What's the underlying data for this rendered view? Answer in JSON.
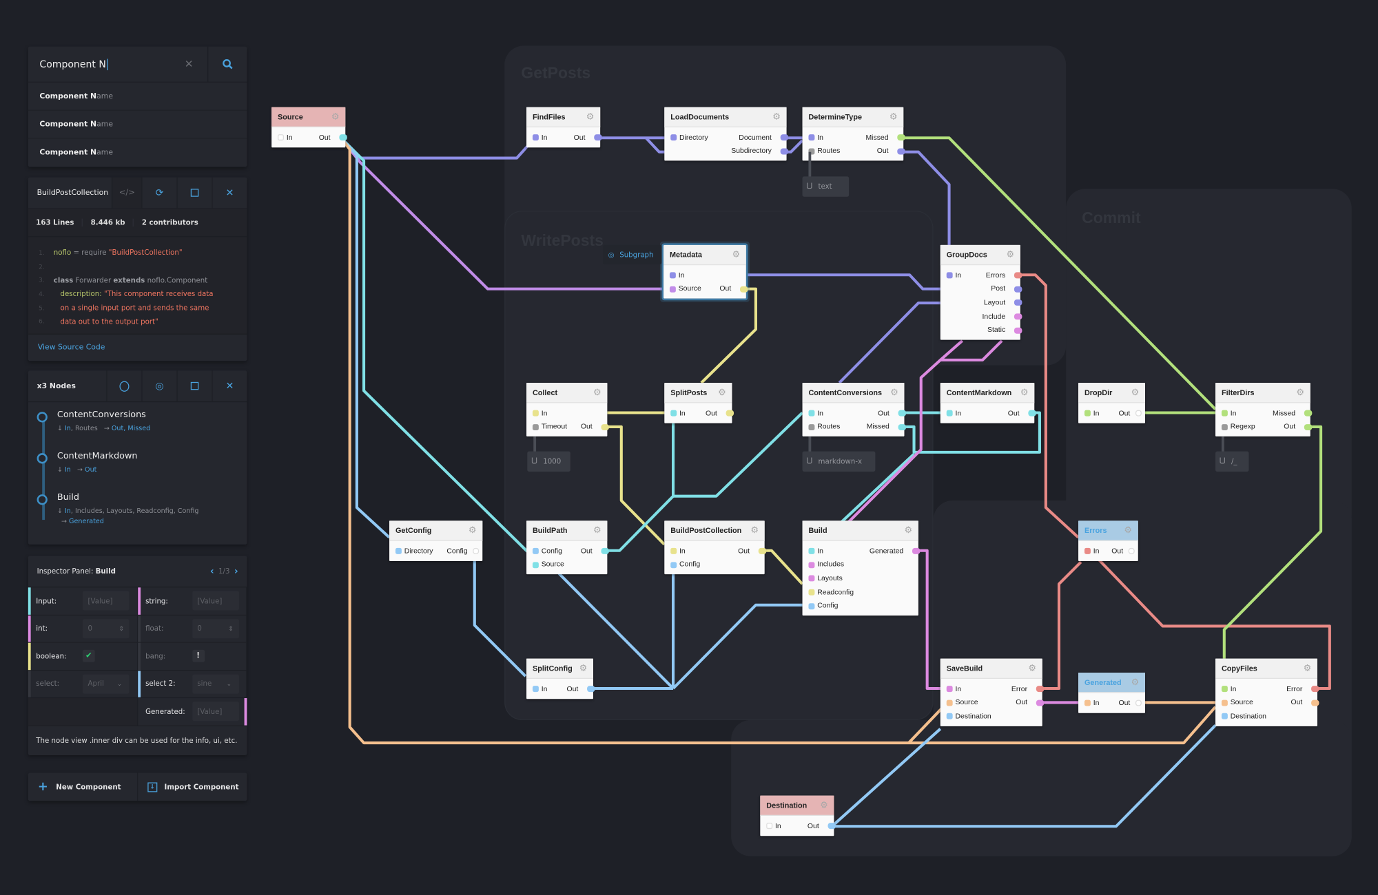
{
  "colors": {
    "lavender": "#8e8ee6",
    "violet": "#c18ce8",
    "cyan": "#80e0e6",
    "blue": "#92c9f5",
    "orange": "#f5c08e",
    "yellow": "#e8e28c",
    "green": "#b2e07c",
    "salmon": "#e98a86",
    "magenta": "#dc8ae0",
    "grey": "#9a9a9a",
    "accent": "#4aa3df"
  },
  "search": {
    "value": "Component N",
    "results": [
      {
        "match": "Component N",
        "rest": "ame"
      },
      {
        "match": "Component N",
        "rest": "ame"
      },
      {
        "match": "Component N",
        "rest": "ame"
      }
    ]
  },
  "code_panel": {
    "title": "BuildPostCollection",
    "code_toggle": "</>",
    "stats": [
      "163 Lines",
      "8.446 kb",
      "2 contributors"
    ],
    "lines": [
      {
        "n": "1.",
        "tokens": [
          {
            "t": "noflo",
            "c": "green"
          },
          {
            "t": " = require ",
            "c": "grey"
          },
          {
            "t": "\"BuildPostCollection\"",
            "c": "red"
          }
        ]
      },
      {
        "n": "2.",
        "tokens": []
      },
      {
        "n": "3.",
        "tokens": [
          {
            "t": "class",
            "c": "bold"
          },
          {
            "t": " Forwarder ",
            "c": "grey"
          },
          {
            "t": "extends",
            "c": "bold"
          },
          {
            "t": " noflo.Component",
            "c": "grey"
          }
        ]
      },
      {
        "n": "4.",
        "tokens": [
          {
            "t": "   description: ",
            "c": "green"
          },
          {
            "t": "\"This component receives data",
            "c": "red"
          }
        ]
      },
      {
        "n": "5.",
        "tokens": [
          {
            "t": "   on a single input port and sends the same",
            "c": "red"
          }
        ]
      },
      {
        "n": "6.",
        "tokens": [
          {
            "t": "   data out to the output port\"",
            "c": "red"
          }
        ]
      }
    ],
    "footer": "View Source Code"
  },
  "nodes_panel": {
    "title": "x3 Nodes",
    "items": [
      {
        "name": "ContentConversions",
        "in_active": "In",
        "in_rest": ", Routes",
        "outputs": "Out, Missed"
      },
      {
        "name": "ContentMarkdown",
        "in_active": "In",
        "in_rest": "",
        "outputs": "Out"
      },
      {
        "name": "Build",
        "in_active": "In",
        "in_rest": ", Includes, Layouts, Readconfig, Config",
        "outputs": "Generated"
      }
    ]
  },
  "inspector": {
    "title": "Inspector Panel:",
    "node": "Build",
    "page": "1/3",
    "fields": [
      {
        "label": "Input:",
        "value": "[Value]",
        "type": "text",
        "color": "cyan"
      },
      {
        "label": "string:",
        "value": "[Value]",
        "type": "text",
        "color": "magenta"
      },
      {
        "label": "int:",
        "value": "0",
        "type": "number",
        "color": "magenta"
      },
      {
        "label": "float:",
        "value": "0",
        "type": "number",
        "color": "",
        "dim": true
      },
      {
        "label": "boolean:",
        "value": "✔",
        "type": "check",
        "color": "yellow"
      },
      {
        "label": "bang:",
        "value": "!",
        "type": "bang",
        "color": "",
        "dim": true
      },
      {
        "label": "select:",
        "value": "April",
        "type": "select",
        "color": "",
        "dim": true
      },
      {
        "label": "select 2:",
        "value": "sine",
        "type": "select",
        "color": "blue"
      },
      {
        "label": "",
        "value": "",
        "type": "empty"
      },
      {
        "label": "Generated:",
        "value": "[Value]",
        "type": "text",
        "color": "magenta",
        "right_bar": true
      }
    ],
    "description": "The node view .inner div can be used for the info, ui, etc."
  },
  "actions": {
    "new": "New Component",
    "import": "Import Component"
  },
  "graph": {
    "groups": [
      "GetPosts",
      "WritePosts",
      "Commit"
    ],
    "subgraph_label": "Subgraph",
    "nodes": [
      {
        "title": "Source",
        "header": "red",
        "in": [
          [
            "In",
            ""
          ]
        ],
        "out": [
          [
            "Out",
            "cyan"
          ]
        ]
      },
      {
        "title": "FindFiles",
        "in": [
          [
            "In",
            "lavender"
          ]
        ],
        "out": [
          [
            "Out",
            "lavender"
          ]
        ]
      },
      {
        "title": "LoadDocuments",
        "in": [
          [
            "Directory",
            "lavender"
          ]
        ],
        "out": [
          [
            "Document",
            "lavender"
          ],
          [
            "Subdirectory",
            "lavender"
          ]
        ]
      },
      {
        "title": "DetermineType",
        "in": [
          [
            "In",
            "lavender"
          ],
          [
            "Routes",
            "grey"
          ]
        ],
        "out": [
          [
            "Missed",
            "green"
          ],
          [
            "Out",
            "lavender"
          ]
        ]
      },
      {
        "title": "Metadata",
        "selected": true,
        "in": [
          [
            "In",
            "lavender"
          ],
          [
            "Source",
            "violet"
          ]
        ],
        "out": [
          null,
          [
            "Out",
            "yellow"
          ]
        ]
      },
      {
        "title": "GroupDocs",
        "in": [
          [
            "In",
            "lavender"
          ]
        ],
        "out": [
          [
            "Errors",
            "salmon"
          ],
          [
            "Post",
            "lavender"
          ],
          [
            "Layout",
            "lavender"
          ],
          [
            "Include",
            "magenta"
          ],
          [
            "Static",
            "magenta"
          ]
        ]
      },
      {
        "title": "Collect",
        "in": [
          [
            "In",
            "yellow"
          ],
          [
            "Timeout",
            "grey"
          ]
        ],
        "out": [
          null,
          [
            "Out",
            "yellow"
          ]
        ]
      },
      {
        "title": "SplitPosts",
        "in": [
          [
            "In",
            "cyan"
          ]
        ],
        "out": [
          [
            "Out",
            "yellow"
          ]
        ]
      },
      {
        "title": "ContentConversions",
        "in": [
          [
            "In",
            "cyan"
          ],
          [
            "Routes",
            "grey"
          ]
        ],
        "out": [
          [
            "Out",
            "cyan"
          ],
          [
            "Missed",
            "cyan"
          ]
        ]
      },
      {
        "title": "ContentMarkdown",
        "in": [
          [
            "In",
            "cyan"
          ]
        ],
        "out": [
          [
            "Out",
            "cyan"
          ]
        ]
      },
      {
        "title": "DropDir",
        "in": [
          [
            "In",
            "green"
          ]
        ],
        "out": [
          [
            "Out",
            ""
          ]
        ]
      },
      {
        "title": "FilterDirs",
        "in": [
          [
            "In",
            "green"
          ],
          [
            "Regexp",
            "grey"
          ]
        ],
        "out": [
          [
            "Missed",
            "green"
          ],
          [
            "Out",
            "green"
          ]
        ]
      },
      {
        "title": "GetConfig",
        "in": [
          [
            "Directory",
            "blue"
          ]
        ],
        "out": [
          [
            "Config",
            ""
          ]
        ]
      },
      {
        "title": "BuildPath",
        "in": [
          [
            "Config",
            "blue"
          ],
          [
            "Source",
            "cyan"
          ]
        ],
        "out": [
          [
            "Out",
            "cyan"
          ]
        ]
      },
      {
        "title": "BuildPostCollection",
        "in": [
          [
            "In",
            "yellow"
          ],
          [
            "Config",
            "blue"
          ]
        ],
        "out": [
          [
            "Out",
            "yellow"
          ]
        ]
      },
      {
        "title": "Build",
        "in": [
          [
            "In",
            "cyan"
          ],
          [
            "Includes",
            "magenta"
          ],
          [
            "Layouts",
            "magenta"
          ],
          [
            "Readconfig",
            "yellow"
          ],
          [
            "Config",
            "blue"
          ]
        ],
        "out": [
          [
            "Generated",
            "magenta"
          ]
        ]
      },
      {
        "title": "Errors",
        "header": "blue",
        "in": [
          [
            "In",
            "salmon"
          ]
        ],
        "out": [
          [
            "Out",
            ""
          ]
        ]
      },
      {
        "title": "SplitConfig",
        "in": [
          [
            "In",
            "blue"
          ]
        ],
        "out": [
          [
            "Out",
            "blue"
          ]
        ]
      },
      {
        "title": "SaveBuild",
        "in": [
          [
            "In",
            "magenta"
          ],
          [
            "Source",
            "orange"
          ],
          [
            "Destination",
            "blue"
          ]
        ],
        "out": [
          [
            "Error",
            "salmon"
          ],
          [
            "Out",
            "magenta"
          ]
        ]
      },
      {
        "title": "Generated",
        "header": "blue",
        "in": [
          [
            "In",
            "orange"
          ]
        ],
        "out": [
          [
            "Out",
            ""
          ]
        ]
      },
      {
        "title": "CopyFiles",
        "in": [
          [
            "In",
            "green"
          ],
          [
            "Source",
            "orange"
          ],
          [
            "Destination",
            "blue"
          ]
        ],
        "out": [
          [
            "Error",
            "salmon"
          ],
          [
            "Out",
            "orange"
          ]
        ]
      },
      {
        "title": "Destination",
        "header": "red",
        "in": [
          [
            "In",
            ""
          ]
        ],
        "out": [
          [
            "Out",
            "blue"
          ]
        ]
      }
    ],
    "iips": [
      "text",
      "1000",
      "markdown-x",
      "/_"
    ]
  }
}
